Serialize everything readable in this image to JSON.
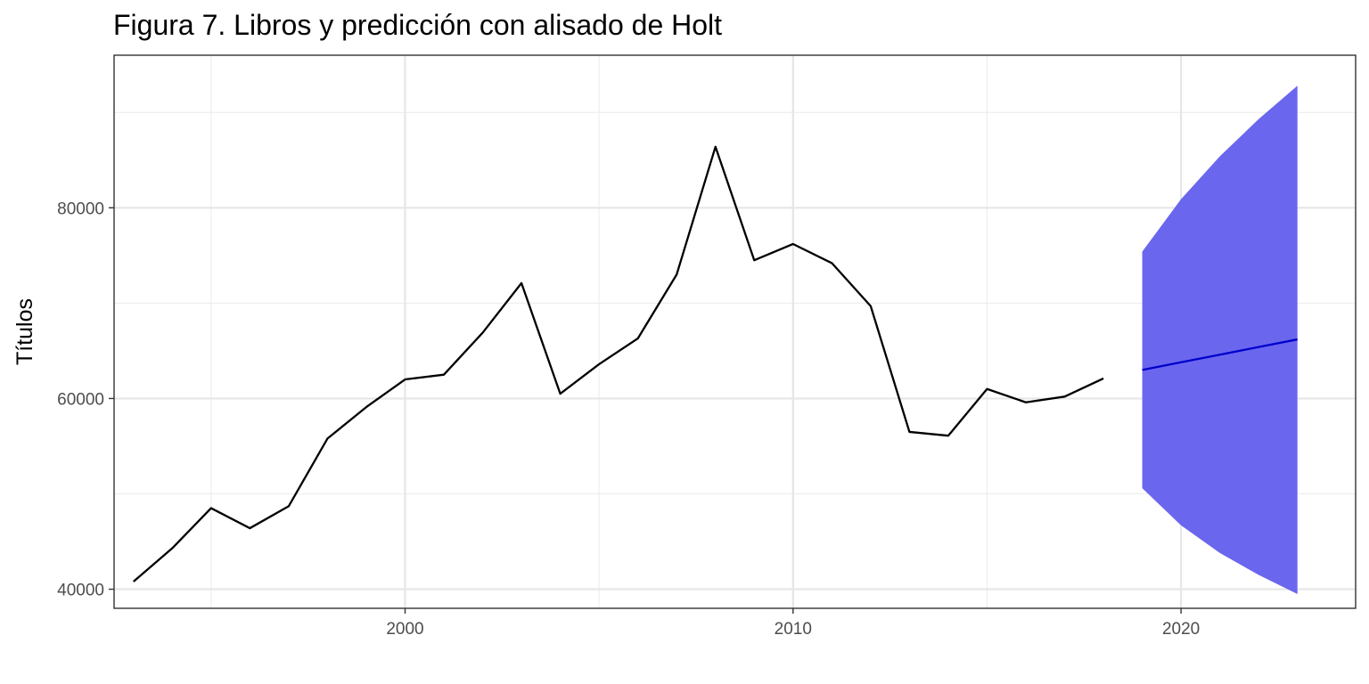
{
  "chart_data": {
    "type": "line",
    "title": "Figura 7. Libros y predicción con alisado de Holt",
    "xlabel": "",
    "ylabel": "Títulos",
    "xlim": [
      1992.5,
      2024.5
    ],
    "ylim": [
      38000,
      96000
    ],
    "x_ticks": [
      2000,
      2010,
      2020
    ],
    "y_ticks": [
      40000,
      60000,
      80000
    ],
    "grid": true,
    "legend": "none",
    "series": [
      {
        "x": [
          1993,
          1994,
          1995,
          1996,
          1997,
          1998,
          1999,
          2000,
          2001,
          2002,
          2003,
          2004,
          2005,
          2006,
          2007,
          2008,
          2009,
          2010,
          2011,
          2012,
          2013,
          2014,
          2015,
          2016,
          2017,
          2018
        ],
        "values": [
          40800,
          44300,
          48500,
          46400,
          48700,
          55800,
          59100,
          62000,
          62500,
          66900,
          72100,
          60500,
          63600,
          66300,
          73000,
          86400,
          74500,
          76200,
          74200,
          69700,
          56500,
          56100,
          61000,
          59600,
          60200,
          62100
        ],
        "color": "#000000"
      },
      {
        "x": [
          2019,
          2020,
          2021,
          2022,
          2023
        ],
        "values": [
          63000,
          63800,
          64600,
          65400,
          66200
        ],
        "lower": [
          50600,
          46700,
          43800,
          41500,
          39500
        ],
        "upper": [
          75400,
          80900,
          85400,
          89300,
          92800
        ],
        "color": "#0000cc",
        "band_color": "#6b66ee"
      }
    ]
  }
}
